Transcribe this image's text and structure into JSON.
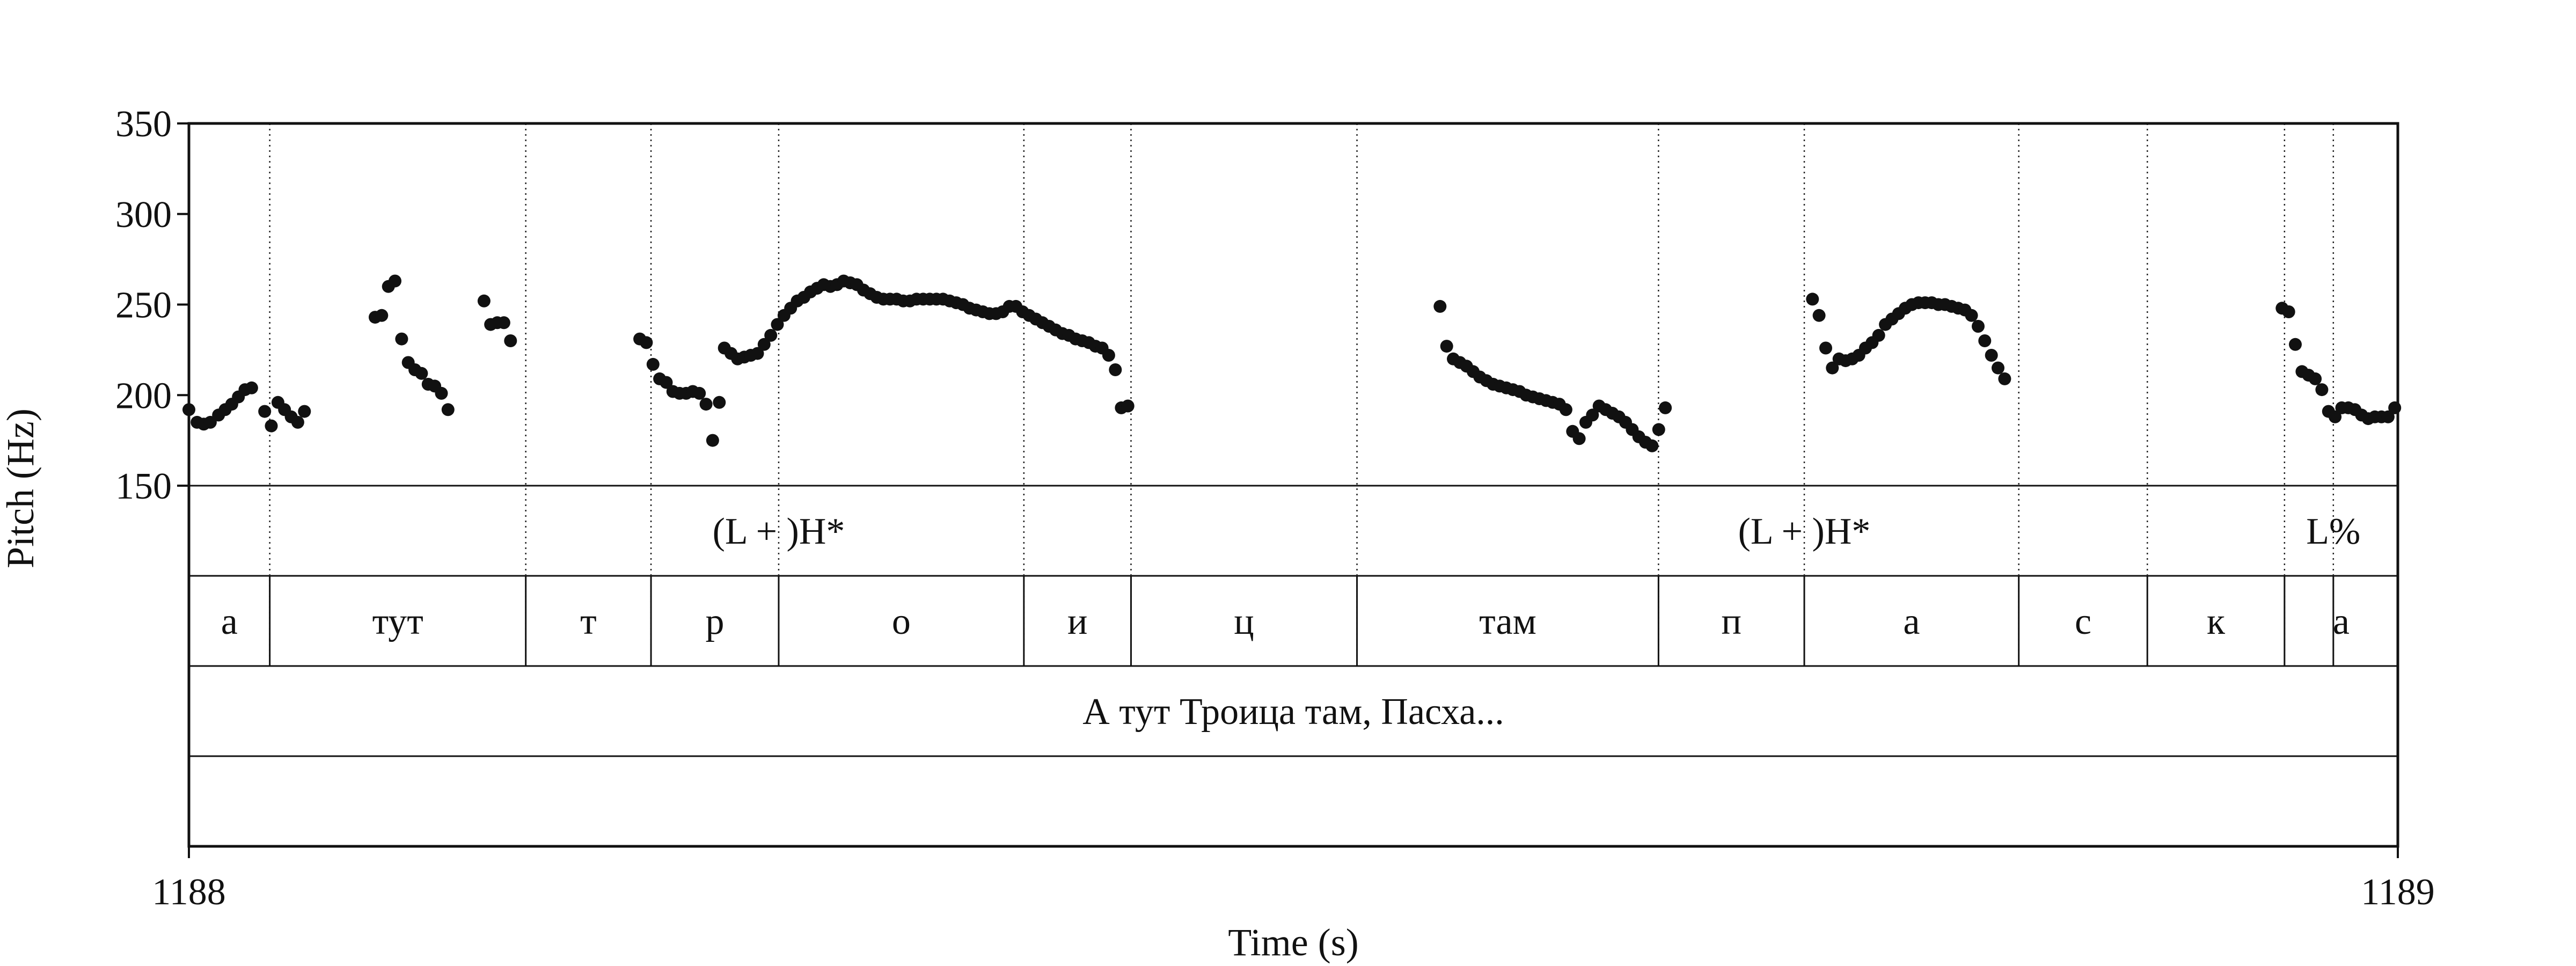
{
  "chart_data": {
    "type": "scatter",
    "xlabel": "Time (s)",
    "ylabel": "Pitch (Hz)",
    "xlim": [
      1188,
      1189
    ],
    "ylim": [
      150,
      350
    ],
    "x_tick_labels": [
      "1188",
      "1189"
    ],
    "y_ticks": [
      150,
      200,
      250,
      300,
      350
    ],
    "y_tick_labels": [
      "150",
      "200",
      "250",
      "300",
      "350"
    ],
    "marker_color": "#111111",
    "boundaries": [
      1188.0366,
      1188.1525,
      1188.2092,
      1188.267,
      1188.378,
      1188.4265,
      1188.5288,
      1188.6653,
      1188.7313,
      1188.8284,
      1188.8866,
      1188.9487,
      1188.9708
    ],
    "tiers": {
      "tones": [
        {
          "time": 1188.267,
          "label": "(L + )H*"
        },
        {
          "time": 1188.7313,
          "label": "(L + )H*"
        },
        {
          "time": 1188.9708,
          "label": "L%"
        }
      ],
      "segments": [
        {
          "start": 1188.0,
          "end": 1188.0366,
          "label": "а"
        },
        {
          "start": 1188.0366,
          "end": 1188.1525,
          "label": "тут"
        },
        {
          "start": 1188.1525,
          "end": 1188.2092,
          "label": "т"
        },
        {
          "start": 1188.2092,
          "end": 1188.267,
          "label": "р"
        },
        {
          "start": 1188.267,
          "end": 1188.378,
          "label": "о"
        },
        {
          "start": 1188.378,
          "end": 1188.4265,
          "label": "и"
        },
        {
          "start": 1188.4265,
          "end": 1188.5288,
          "label": "ц"
        },
        {
          "start": 1188.5288,
          "end": 1188.6653,
          "label": "там"
        },
        {
          "start": 1188.6653,
          "end": 1188.7313,
          "label": "п"
        },
        {
          "start": 1188.7313,
          "end": 1188.8284,
          "label": "а"
        },
        {
          "start": 1188.8284,
          "end": 1188.8866,
          "label": "с"
        },
        {
          "start": 1188.8866,
          "end": 1188.9487,
          "label": "к"
        },
        {
          "start": 1188.9487,
          "end": 1189.0,
          "label": "а"
        }
      ],
      "phrase": [
        {
          "start": 1188.0,
          "end": 1189.0,
          "label": "А тут Троица там, Пасха..."
        }
      ],
      "empty": []
    },
    "series": [
      {
        "points": [
          [
            1188.0,
            192
          ],
          [
            1188.0037,
            185
          ],
          [
            1188.0067,
            184
          ],
          [
            1188.0097,
            185
          ],
          [
            1188.0134,
            189
          ],
          [
            1188.0164,
            192
          ],
          [
            1188.0194,
            195
          ],
          [
            1188.0224,
            199
          ],
          [
            1188.0254,
            203
          ],
          [
            1188.0284,
            204
          ],
          [
            1188.0343,
            191
          ],
          [
            1188.0373,
            183
          ],
          [
            1188.0403,
            196
          ],
          [
            1188.0433,
            192
          ],
          [
            1188.0463,
            188
          ],
          [
            1188.0493,
            185
          ],
          [
            1188.0523,
            191
          ],
          [
            1188.0843,
            243
          ],
          [
            1188.0873,
            244
          ],
          [
            1188.0903,
            260
          ],
          [
            1188.0933,
            263
          ],
          [
            1188.0963,
            231
          ],
          [
            1188.0993,
            218
          ],
          [
            1188.1023,
            214
          ],
          [
            1188.1053,
            212
          ],
          [
            1188.1083,
            206
          ],
          [
            1188.1113,
            205
          ],
          [
            1188.1143,
            201
          ],
          [
            1188.1173,
            192
          ],
          [
            1188.1336,
            252
          ],
          [
            1188.1366,
            239
          ],
          [
            1188.1396,
            240
          ],
          [
            1188.1426,
            240
          ],
          [
            1188.1456,
            230
          ],
          [
            1188.2041,
            231
          ],
          [
            1188.2071,
            229
          ],
          [
            1188.2101,
            217
          ],
          [
            1188.2131,
            209
          ],
          [
            1188.2161,
            207
          ],
          [
            1188.2191,
            202
          ],
          [
            1188.2221,
            201
          ],
          [
            1188.2251,
            201
          ],
          [
            1188.2281,
            202
          ],
          [
            1188.2311,
            201
          ],
          [
            1188.2341,
            195
          ],
          [
            1188.2371,
            175
          ],
          [
            1188.2401,
            196
          ],
          [
            1188.2424,
            226
          ],
          [
            1188.2454,
            223
          ],
          [
            1188.2484,
            220
          ],
          [
            1188.2514,
            221
          ],
          [
            1188.2544,
            222
          ],
          [
            1188.2574,
            223
          ],
          [
            1188.2604,
            228
          ],
          [
            1188.2634,
            233
          ],
          [
            1188.2664,
            239
          ],
          [
            1188.2694,
            244
          ],
          [
            1188.2724,
            248
          ],
          [
            1188.2754,
            252
          ],
          [
            1188.2784,
            254
          ],
          [
            1188.2814,
            257
          ],
          [
            1188.2844,
            259
          ],
          [
            1188.2874,
            261
          ],
          [
            1188.2904,
            260
          ],
          [
            1188.2934,
            261
          ],
          [
            1188.2964,
            263
          ],
          [
            1188.2994,
            262
          ],
          [
            1188.3024,
            261
          ],
          [
            1188.3054,
            258
          ],
          [
            1188.3084,
            256
          ],
          [
            1188.3114,
            254
          ],
          [
            1188.3144,
            253
          ],
          [
            1188.3174,
            253
          ],
          [
            1188.3204,
            253
          ],
          [
            1188.3234,
            252
          ],
          [
            1188.3264,
            252
          ],
          [
            1188.3294,
            253
          ],
          [
            1188.3324,
            253
          ],
          [
            1188.3354,
            253
          ],
          [
            1188.3384,
            253
          ],
          [
            1188.3414,
            253
          ],
          [
            1188.3444,
            252
          ],
          [
            1188.3474,
            251
          ],
          [
            1188.3504,
            250
          ],
          [
            1188.3534,
            248
          ],
          [
            1188.3564,
            247
          ],
          [
            1188.3594,
            246
          ],
          [
            1188.3624,
            245
          ],
          [
            1188.3654,
            245
          ],
          [
            1188.3684,
            246
          ],
          [
            1188.3714,
            249
          ],
          [
            1188.3744,
            249
          ],
          [
            1188.3774,
            246
          ],
          [
            1188.3804,
            244
          ],
          [
            1188.3834,
            242
          ],
          [
            1188.3864,
            240
          ],
          [
            1188.3894,
            238
          ],
          [
            1188.3924,
            236
          ],
          [
            1188.3954,
            234
          ],
          [
            1188.3984,
            233
          ],
          [
            1188.4014,
            231
          ],
          [
            1188.4044,
            230
          ],
          [
            1188.4074,
            229
          ],
          [
            1188.4104,
            227
          ],
          [
            1188.4134,
            226
          ],
          [
            1188.4164,
            222
          ],
          [
            1188.4194,
            214
          ],
          [
            1188.4221,
            193
          ],
          [
            1188.4251,
            194
          ],
          [
            1188.5664,
            249
          ],
          [
            1188.5694,
            227
          ],
          [
            1188.5724,
            220
          ],
          [
            1188.5754,
            218
          ],
          [
            1188.5784,
            216
          ],
          [
            1188.5814,
            213
          ],
          [
            1188.5844,
            210
          ],
          [
            1188.5874,
            208
          ],
          [
            1188.5904,
            206
          ],
          [
            1188.5934,
            205
          ],
          [
            1188.5964,
            204
          ],
          [
            1188.5994,
            203
          ],
          [
            1188.6024,
            202
          ],
          [
            1188.6054,
            200
          ],
          [
            1188.6084,
            199
          ],
          [
            1188.6114,
            198
          ],
          [
            1188.6144,
            197
          ],
          [
            1188.6174,
            196
          ],
          [
            1188.6204,
            195
          ],
          [
            1188.6234,
            192
          ],
          [
            1188.6264,
            180
          ],
          [
            1188.6294,
            176
          ],
          [
            1188.6324,
            185
          ],
          [
            1188.6354,
            189
          ],
          [
            1188.6384,
            194
          ],
          [
            1188.6414,
            192
          ],
          [
            1188.6444,
            190
          ],
          [
            1188.6474,
            188
          ],
          [
            1188.6504,
            185
          ],
          [
            1188.6534,
            181
          ],
          [
            1188.6564,
            177
          ],
          [
            1188.6594,
            174
          ],
          [
            1188.6624,
            172
          ],
          [
            1188.6654,
            181
          ],
          [
            1188.6684,
            193
          ],
          [
            1188.735,
            253
          ],
          [
            1188.738,
            244
          ],
          [
            1188.741,
            226
          ],
          [
            1188.744,
            215
          ],
          [
            1188.747,
            220
          ],
          [
            1188.75,
            219
          ],
          [
            1188.753,
            220
          ],
          [
            1188.756,
            222
          ],
          [
            1188.759,
            226
          ],
          [
            1188.762,
            229
          ],
          [
            1188.765,
            233
          ],
          [
            1188.768,
            239
          ],
          [
            1188.771,
            242
          ],
          [
            1188.774,
            245
          ],
          [
            1188.777,
            248
          ],
          [
            1188.78,
            250
          ],
          [
            1188.783,
            251
          ],
          [
            1188.786,
            251
          ],
          [
            1188.789,
            251
          ],
          [
            1188.792,
            250
          ],
          [
            1188.795,
            250
          ],
          [
            1188.798,
            249
          ],
          [
            1188.801,
            248
          ],
          [
            1188.804,
            247
          ],
          [
            1188.807,
            244
          ],
          [
            1188.81,
            238
          ],
          [
            1188.813,
            230
          ],
          [
            1188.816,
            222
          ],
          [
            1188.819,
            215
          ],
          [
            1188.822,
            209
          ],
          [
            1188.9476,
            248
          ],
          [
            1188.9506,
            246
          ],
          [
            1188.9536,
            228
          ],
          [
            1188.9566,
            213
          ],
          [
            1188.9596,
            211
          ],
          [
            1188.9626,
            209
          ],
          [
            1188.9656,
            203
          ],
          [
            1188.9686,
            191
          ],
          [
            1188.9716,
            188
          ],
          [
            1188.9746,
            193
          ],
          [
            1188.9776,
            193
          ],
          [
            1188.9806,
            192
          ],
          [
            1188.9836,
            189
          ],
          [
            1188.9866,
            187
          ],
          [
            1188.9896,
            188
          ],
          [
            1188.9926,
            188
          ],
          [
            1188.9956,
            188
          ],
          [
            1188.9986,
            193
          ]
        ]
      }
    ]
  }
}
